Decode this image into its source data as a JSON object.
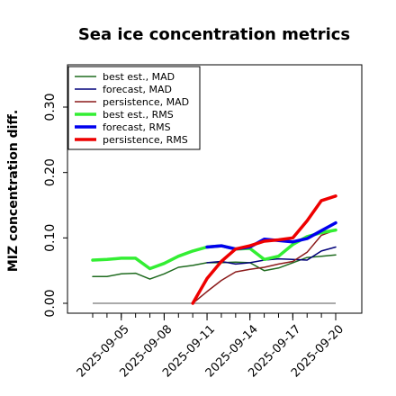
{
  "chart_data": {
    "type": "line",
    "title": "Sea ice concentration metrics",
    "ylabel": "MIZ concentration diff.",
    "xlabel": "",
    "ylim": [
      -0.01,
      0.36
    ],
    "xlim": [
      0,
      17
    ],
    "grid": false,
    "legend_position": "top-left",
    "x_dates": [
      "2025-09-03",
      "2025-09-04",
      "2025-09-05",
      "2025-09-06",
      "2025-09-07",
      "2025-09-08",
      "2025-09-09",
      "2025-09-10",
      "2025-09-11",
      "2025-09-12",
      "2025-09-13",
      "2025-09-14",
      "2025-09-15",
      "2025-09-16",
      "2025-09-17",
      "2025-09-18",
      "2025-09-19",
      "2025-09-20"
    ],
    "x_ticks": [
      "2025-09-05",
      "2025-09-08",
      "2025-09-11",
      "2025-09-14",
      "2025-09-17",
      "2025-09-20"
    ],
    "highlight_tick": "2025-09-11",
    "highlight_color": "#2e8b2e",
    "y_ticks": [
      "0.00",
      "0.10",
      "0.20",
      "0.30"
    ],
    "reference_line": 0.0,
    "series": [
      {
        "name": "best est., MAD",
        "color": "#1f6b1f",
        "width": 1.5,
        "x": [
          "2025-09-03",
          "2025-09-04",
          "2025-09-05",
          "2025-09-06",
          "2025-09-07",
          "2025-09-08",
          "2025-09-09",
          "2025-09-10",
          "2025-09-11",
          "2025-09-12",
          "2025-09-13",
          "2025-09-14",
          "2025-09-15",
          "2025-09-16",
          "2025-09-17",
          "2025-09-18",
          "2025-09-19",
          "2025-09-20"
        ],
        "y": [
          0.041,
          0.041,
          0.045,
          0.046,
          0.037,
          0.045,
          0.055,
          0.058,
          0.062,
          0.062,
          0.063,
          0.062,
          0.05,
          0.054,
          0.062,
          0.07,
          0.072,
          0.074
        ]
      },
      {
        "name": "forecast,  MAD",
        "color": "#00007a",
        "width": 1.5,
        "x": [
          "2025-09-11",
          "2025-09-12",
          "2025-09-13",
          "2025-09-14",
          "2025-09-15",
          "2025-09-16",
          "2025-09-17",
          "2025-09-18",
          "2025-09-19",
          "2025-09-20"
        ],
        "y": [
          0.062,
          0.064,
          0.06,
          0.062,
          0.066,
          0.068,
          0.067,
          0.066,
          0.08,
          0.086
        ]
      },
      {
        "name": "persistence, MAD",
        "color": "#8b1a1a",
        "width": 1.5,
        "x": [
          "2025-09-10",
          "2025-09-11",
          "2025-09-12",
          "2025-09-13",
          "2025-09-14",
          "2025-09-15",
          "2025-09-16",
          "2025-09-17",
          "2025-09-18",
          "2025-09-19",
          "2025-09-20"
        ],
        "y": [
          0.0,
          0.018,
          0.035,
          0.048,
          0.052,
          0.055,
          0.06,
          0.064,
          0.078,
          0.104,
          0.112
        ]
      },
      {
        "name": "best est., RMS",
        "color": "#33ee33",
        "width": 3.5,
        "x": [
          "2025-09-03",
          "2025-09-04",
          "2025-09-05",
          "2025-09-06",
          "2025-09-07",
          "2025-09-08",
          "2025-09-09",
          "2025-09-10",
          "2025-09-11",
          "2025-09-12",
          "2025-09-13",
          "2025-09-14",
          "2025-09-15",
          "2025-09-16",
          "2025-09-17",
          "2025-09-18",
          "2025-09-19",
          "2025-09-20"
        ],
        "y": [
          0.066,
          0.067,
          0.069,
          0.069,
          0.053,
          0.061,
          0.072,
          0.08,
          0.086,
          0.088,
          0.083,
          0.084,
          0.067,
          0.072,
          0.09,
          0.102,
          0.108,
          0.112
        ]
      },
      {
        "name": "forecast,  RMS",
        "color": "#0000ee",
        "width": 3.5,
        "x": [
          "2025-09-11",
          "2025-09-12",
          "2025-09-13",
          "2025-09-14",
          "2025-09-15",
          "2025-09-16",
          "2025-09-17",
          "2025-09-18",
          "2025-09-19",
          "2025-09-20"
        ],
        "y": [
          0.086,
          0.088,
          0.083,
          0.086,
          0.098,
          0.096,
          0.094,
          0.099,
          0.111,
          0.123
        ]
      },
      {
        "name": "persistence, RMS",
        "color": "#ee0000",
        "width": 3.5,
        "x": [
          "2025-09-10",
          "2025-09-11",
          "2025-09-12",
          "2025-09-13",
          "2025-09-14",
          "2025-09-15",
          "2025-09-16",
          "2025-09-17",
          "2025-09-18",
          "2025-09-19",
          "2025-09-20"
        ],
        "y": [
          0.0,
          0.038,
          0.064,
          0.083,
          0.088,
          0.095,
          0.097,
          0.1,
          0.126,
          0.157,
          0.164
        ]
      }
    ]
  }
}
